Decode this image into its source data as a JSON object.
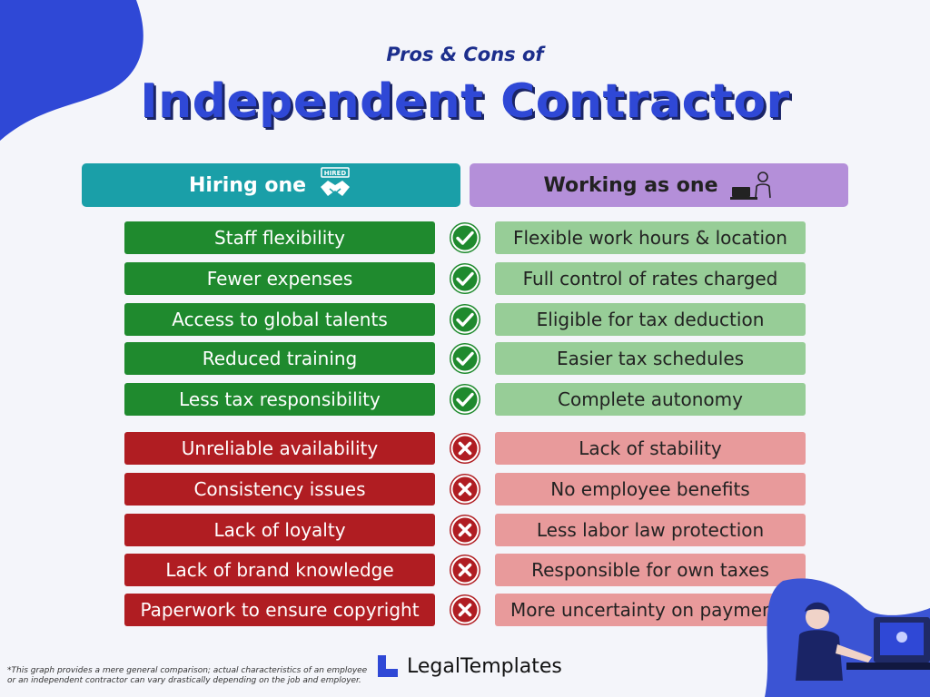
{
  "header": {
    "subtitle": "Pros & Cons of",
    "title": "Independent Contractor"
  },
  "columns": {
    "left_label": "Hiring one",
    "left_icon": "hired-handshake-icon",
    "left_icon_text": "HIRED",
    "right_label": "Working as one",
    "right_icon": "person-at-laptop-icon"
  },
  "pros": [
    {
      "hiring": "Staff flexibility",
      "working": "Flexible work hours & location"
    },
    {
      "hiring": "Fewer expenses",
      "working": "Full control of rates charged"
    },
    {
      "hiring": "Access to global talents",
      "working": "Eligible for tax deduction"
    },
    {
      "hiring": "Reduced training",
      "working": "Easier tax schedules"
    },
    {
      "hiring": "Less tax responsibility",
      "working": "Complete autonomy"
    }
  ],
  "cons": [
    {
      "hiring": "Unreliable availability",
      "working": "Lack of stability"
    },
    {
      "hiring": "Consistency issues",
      "working": "No employee benefits"
    },
    {
      "hiring": "Lack of loyalty",
      "working": "Less labor law protection"
    },
    {
      "hiring": "Lack of brand knowledge",
      "working": "Responsible for own taxes"
    },
    {
      "hiring": "Paperwork to ensure copyright",
      "working": "More uncertainty on payments"
    }
  ],
  "footnote": "*This graph provides a mere general comparison; actual characteristics of an employee or an independent contractor can vary drastically depending on the job and employer.",
  "brand": {
    "name": "LegalTemplates",
    "icon": "legaltemplates-logo-icon"
  },
  "colors": {
    "title": "#2f48d6",
    "hiring_header": "#1a9fa8",
    "working_header": "#b48fd9",
    "pro_dark": "#1f8a2e",
    "pro_light": "#97cd97",
    "con_dark": "#b01d22",
    "con_light": "#e89a9b"
  }
}
